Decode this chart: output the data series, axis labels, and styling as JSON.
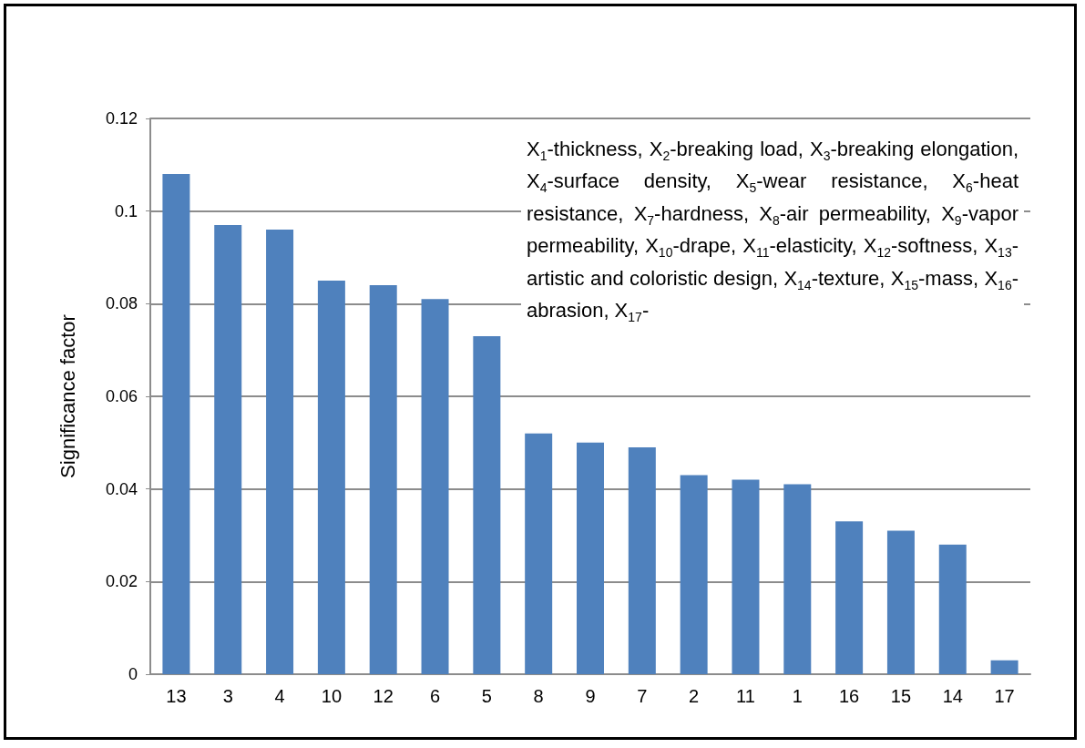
{
  "chart_data": {
    "type": "bar",
    "ylabel": "Significance factor",
    "categories": [
      "13",
      "3",
      "4",
      "10",
      "12",
      "6",
      "5",
      "8",
      "9",
      "7",
      "2",
      "11",
      "1",
      "16",
      "15",
      "14",
      "17"
    ],
    "values": [
      0.108,
      0.097,
      0.096,
      0.085,
      0.084,
      0.081,
      0.073,
      0.052,
      0.05,
      0.049,
      0.043,
      0.042,
      0.041,
      0.033,
      0.031,
      0.028,
      0.003
    ],
    "color": "#4f81bd",
    "ylim": [
      0,
      0.12
    ],
    "yticks": [
      0,
      0.02,
      0.04,
      0.06,
      0.08,
      0.1,
      0.12
    ],
    "grid": "y",
    "annotations": [
      "X$_{1}$-thickness, X$_{2}$-breaking load, X$_{3}$-breaking elongation, X$_{4}$-surface density, X$_{5}$-wear resistance, X$_{6}$-heat resistance, X$_{7}$-hardness, X$_{8}$-air permeability, X$_{9}$-vapor permeability, X$_{10}$-drape, X$_{11}$-elasticity, X$_{12}$-softness, X$_{13}$-artistic and coloristic design, X$_{14}$-texture, X$_{15}$-mass, X$_{16}$-abrasion, X$_{17}$-"
    ]
  }
}
